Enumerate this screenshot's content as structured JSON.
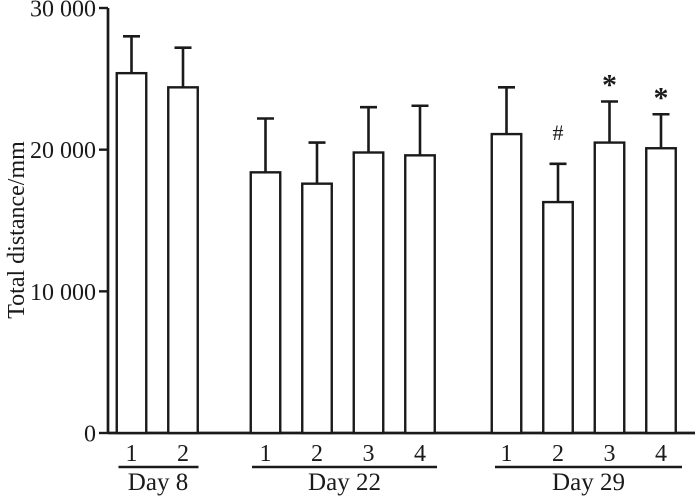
{
  "figure": {
    "background": "#ffffff",
    "ink_color": "#1a1a1a"
  },
  "chart_data": {
    "type": "bar",
    "title": "",
    "ylabel": "Total distance/mm",
    "xlabel": "",
    "ylim": [
      0,
      30000
    ],
    "grid": false,
    "legend": "none",
    "bar_style": {
      "fill": "#ffffff",
      "stroke": "#1a1a1a"
    },
    "error_bar_style": "upper-only with top cap",
    "yticks": [
      {
        "value": 0,
        "label": "0"
      },
      {
        "value": 10000,
        "label": "10 000"
      },
      {
        "value": 20000,
        "label": "20 000"
      },
      {
        "value": 30000,
        "label": "30 000"
      }
    ],
    "groups": [
      {
        "label": "Day 8",
        "bars": [
          {
            "tick": "1",
            "value": 25400,
            "error": 2600,
            "annotation": ""
          },
          {
            "tick": "2",
            "value": 24400,
            "error": 2800,
            "annotation": ""
          }
        ]
      },
      {
        "label": "Day 22",
        "bars": [
          {
            "tick": "1",
            "value": 18400,
            "error": 3800,
            "annotation": ""
          },
          {
            "tick": "2",
            "value": 17600,
            "error": 2900,
            "annotation": ""
          },
          {
            "tick": "3",
            "value": 19800,
            "error": 3200,
            "annotation": ""
          },
          {
            "tick": "4",
            "value": 19600,
            "error": 3500,
            "annotation": ""
          }
        ]
      },
      {
        "label": "Day 29",
        "bars": [
          {
            "tick": "1",
            "value": 21100,
            "error": 3300,
            "annotation": ""
          },
          {
            "tick": "2",
            "value": 16300,
            "error": 2700,
            "annotation": "#"
          },
          {
            "tick": "3",
            "value": 20500,
            "error": 2900,
            "annotation": "*"
          },
          {
            "tick": "4",
            "value": 20100,
            "error": 2400,
            "annotation": "*"
          }
        ]
      }
    ]
  }
}
